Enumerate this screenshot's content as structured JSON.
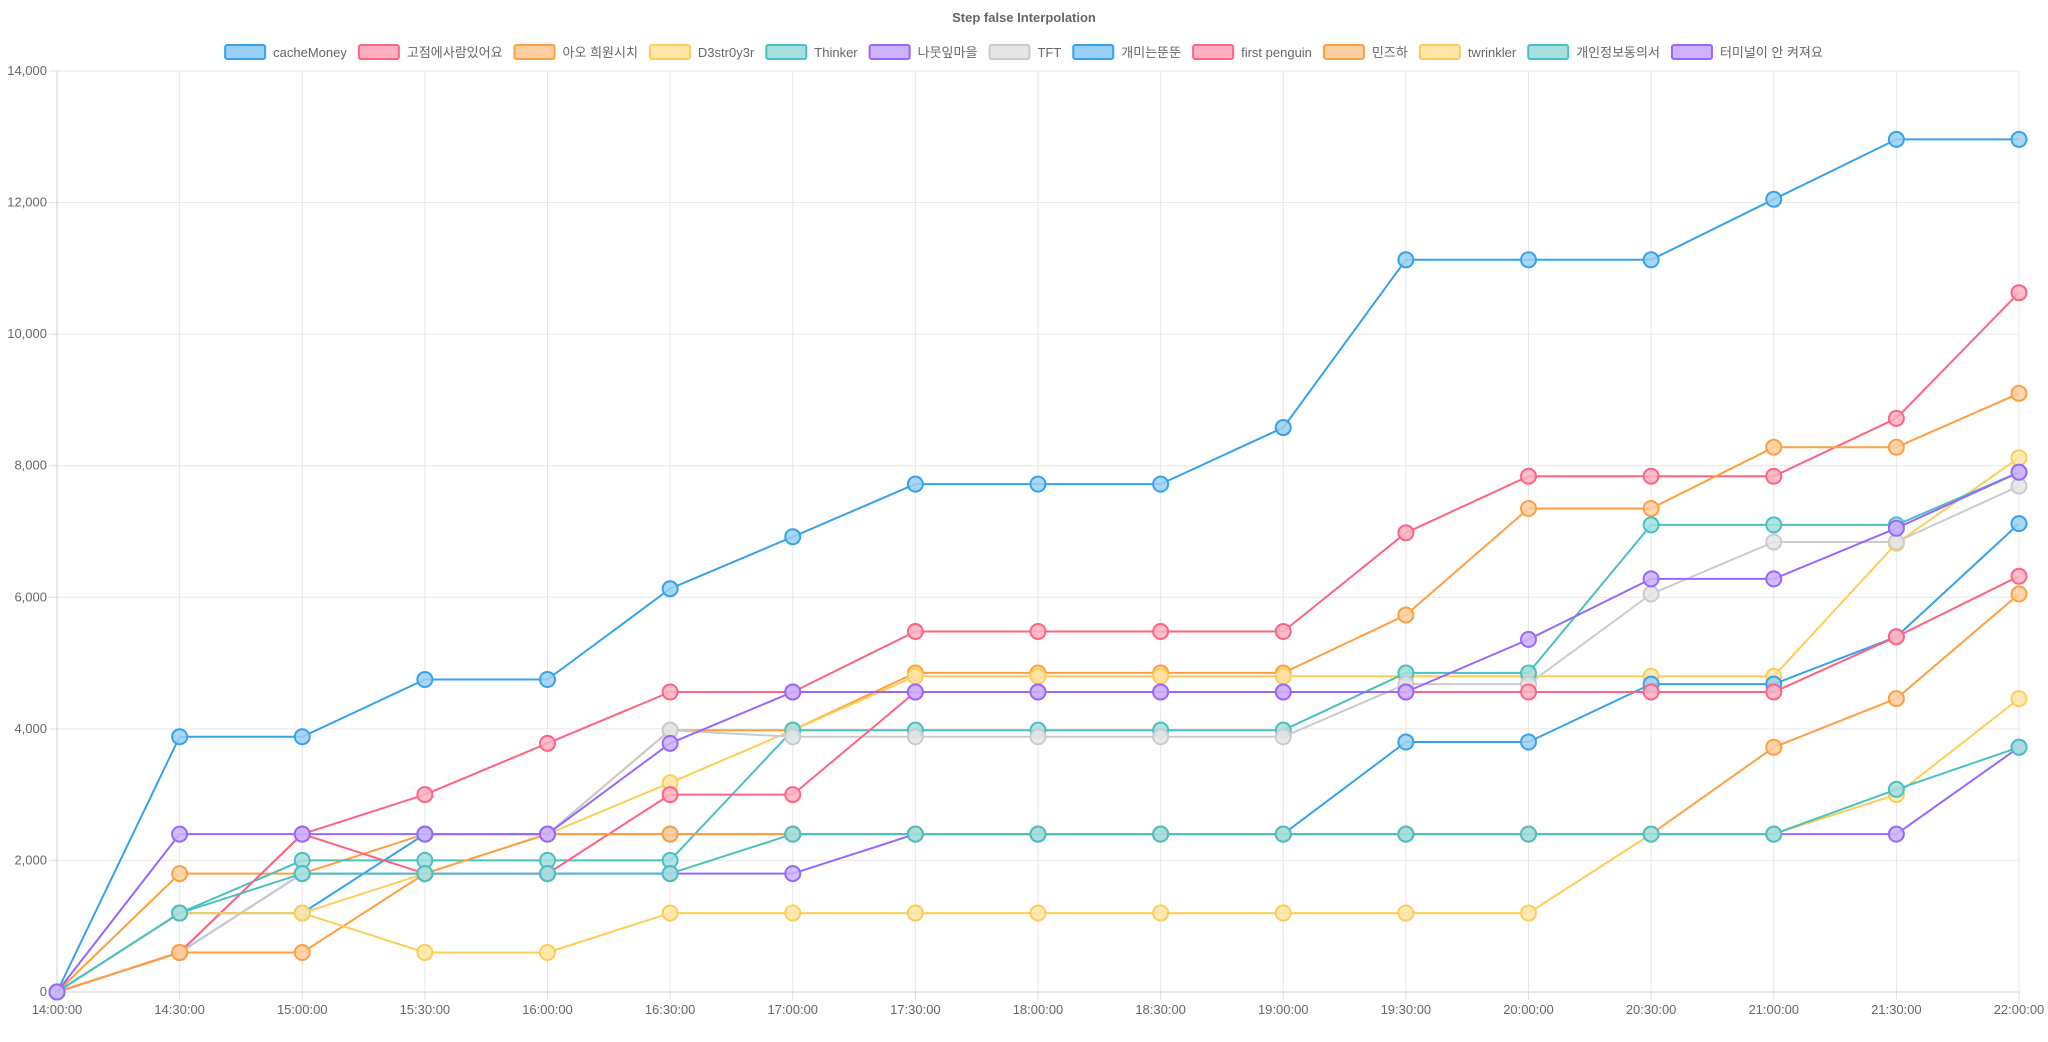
{
  "chart_data": {
    "type": "line",
    "title": "Step false Interpolation",
    "xlabel": "",
    "ylabel": "",
    "ylim": [
      0,
      14000
    ],
    "yticks": [
      0,
      2000,
      4000,
      6000,
      8000,
      10000,
      12000,
      14000
    ],
    "ytick_labels": [
      "0",
      "2,000",
      "4,000",
      "6,000",
      "8,000",
      "10,000",
      "12,000",
      "14,000"
    ],
    "grid": true,
    "legend_position": "top",
    "categories": [
      "14:00:00",
      "14:30:00",
      "15:00:00",
      "15:30:00",
      "16:00:00",
      "16:30:00",
      "17:00:00",
      "17:30:00",
      "18:00:00",
      "18:30:00",
      "19:00:00",
      "19:30:00",
      "20:00:00",
      "20:30:00",
      "21:00:00",
      "21:30:00",
      "22:00:00"
    ],
    "series": [
      {
        "name": "cacheMoney",
        "color": "#36a2eb",
        "fill": "#9ad0f5",
        "values": [
          0,
          3880,
          3880,
          4750,
          4750,
          6130,
          6920,
          7720,
          7720,
          7720,
          8580,
          11130,
          11130,
          11130,
          12050,
          12960,
          12960
        ]
      },
      {
        "name": "고점에사람있어요",
        "color": "#ff6384",
        "fill": "#ffb1c1",
        "values": [
          0,
          600,
          2400,
          3000,
          3780,
          4560,
          4560,
          5480,
          5480,
          5480,
          5480,
          6980,
          7840,
          7840,
          7840,
          8720,
          10630
        ]
      },
      {
        "name": "아오 희원시치",
        "color": "#ff9f40",
        "fill": "#ffcf9f",
        "values": [
          0,
          1800,
          1800,
          2400,
          2400,
          3980,
          3980,
          4850,
          4850,
          4850,
          4850,
          5730,
          7350,
          7350,
          8280,
          8280,
          9100
        ]
      },
      {
        "name": "D3str0y3r",
        "color": "#ffcd56",
        "fill": "#ffe6aa",
        "values": [
          0,
          1200,
          1200,
          1800,
          2400,
          3180,
          3980,
          4800,
          4800,
          4800,
          4800,
          4800,
          4800,
          4800,
          4800,
          6820,
          8120
        ]
      },
      {
        "name": "Thinker",
        "color": "#4bc0c0",
        "fill": "#a5dfdf",
        "values": [
          0,
          1200,
          2000,
          2000,
          2000,
          2000,
          3980,
          3980,
          3980,
          3980,
          3980,
          4850,
          4850,
          7100,
          7100,
          7100,
          7900
        ]
      },
      {
        "name": "나뭇잎마을",
        "color": "#9966ff",
        "fill": "#ccb2ff",
        "values": [
          0,
          600,
          1800,
          1800,
          1800,
          1800,
          1800,
          2400,
          2400,
          2400,
          2400,
          2400,
          2400,
          2400,
          2400,
          2400,
          3720
        ]
      },
      {
        "name": "TFT",
        "color": "#c9cbcf",
        "fill": "#e4e5e7",
        "values": [
          0,
          600,
          1800,
          1800,
          2400,
          3980,
          3880,
          3880,
          3880,
          3880,
          3880,
          4680,
          4680,
          6050,
          6840,
          6840,
          7690
        ]
      },
      {
        "name": "개미는뚠뚠",
        "color": "#36a2eb",
        "fill": "#9ad0f5",
        "values": [
          0,
          1200,
          1200,
          2400,
          2400,
          2400,
          2400,
          2400,
          2400,
          2400,
          2400,
          3800,
          3800,
          4680,
          4680,
          5400,
          7120
        ]
      },
      {
        "name": "first penguin",
        "color": "#ff6384",
        "fill": "#ffb1c1",
        "values": [
          0,
          600,
          2400,
          1800,
          1800,
          3000,
          3000,
          4560,
          4560,
          4560,
          4560,
          4560,
          4560,
          4560,
          4560,
          5400,
          6320
        ]
      },
      {
        "name": "민즈하",
        "color": "#ff9f40",
        "fill": "#ffcf9f",
        "values": [
          0,
          600,
          600,
          1800,
          2400,
          2400,
          2400,
          2400,
          2400,
          2400,
          2400,
          2400,
          2400,
          2400,
          3720,
          4460,
          6050
        ]
      },
      {
        "name": "twrinkler",
        "color": "#ffcd56",
        "fill": "#ffe6aa",
        "values": [
          0,
          1200,
          1200,
          600,
          600,
          1200,
          1200,
          1200,
          1200,
          1200,
          1200,
          1200,
          1200,
          2400,
          2400,
          3000,
          4460
        ]
      },
      {
        "name": "개인정보동의서",
        "color": "#4bc0c0",
        "fill": "#a5dfdf",
        "values": [
          0,
          1200,
          1800,
          1800,
          1800,
          1800,
          2400,
          2400,
          2400,
          2400,
          2400,
          2400,
          2400,
          2400,
          2400,
          3080,
          3720
        ]
      },
      {
        "name": "터미널이 안 켜져요",
        "color": "#9966ff",
        "fill": "#ccb2ff",
        "values": [
          0,
          2400,
          2400,
          2400,
          2400,
          3780,
          4560,
          4560,
          4560,
          4560,
          4560,
          4560,
          5360,
          6280,
          6280,
          7050,
          7900
        ]
      }
    ]
  }
}
